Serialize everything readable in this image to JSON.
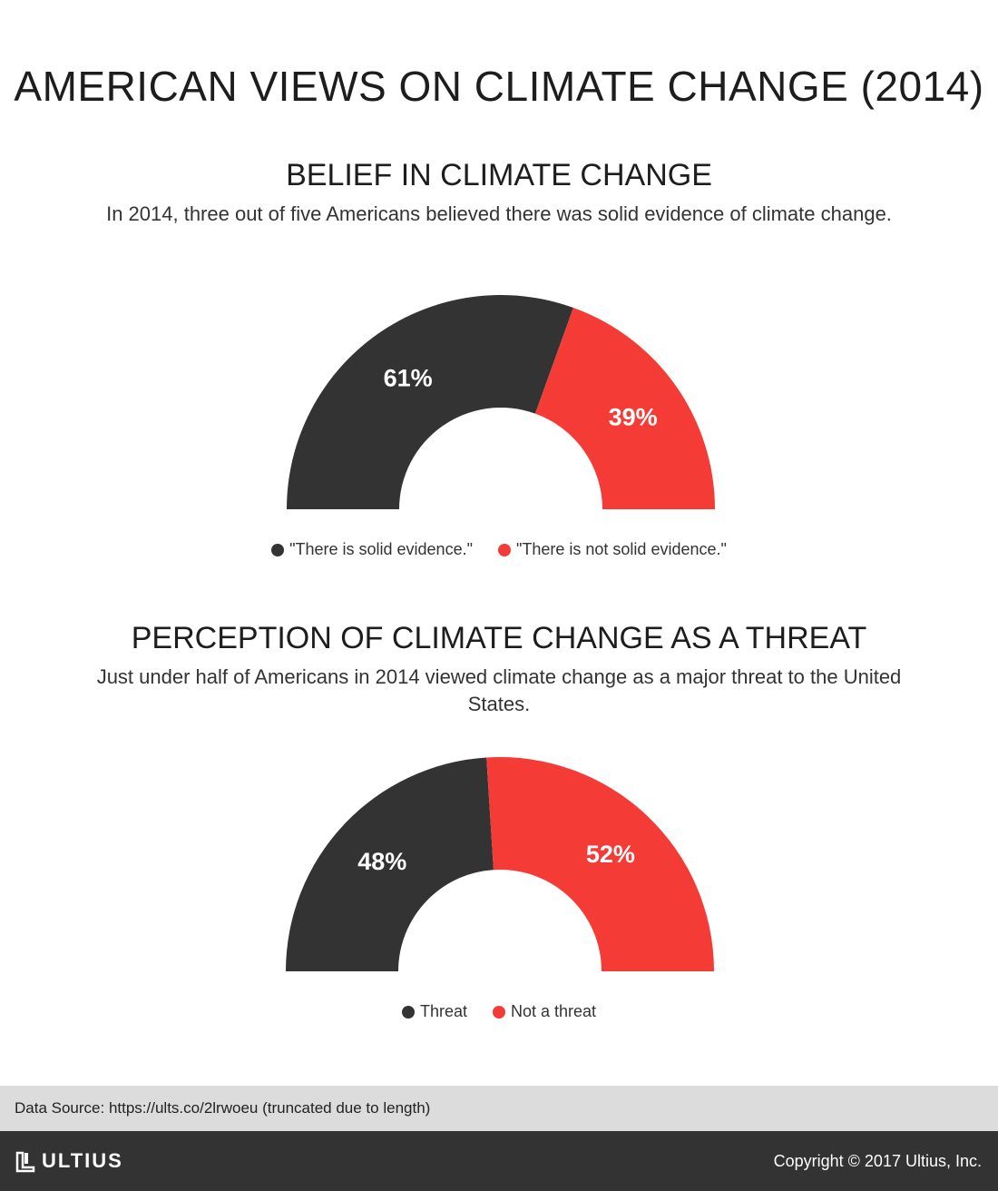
{
  "title": "AMERICAN VIEWS ON CLIMATE CHANGE (2014)",
  "colors": {
    "dark": "#333333",
    "red": "#f43b36"
  },
  "chart_data": [
    {
      "type": "pie",
      "title": "BELIEF IN CLIMATE CHANGE",
      "subtitle": "In 2014, three out of five Americans believed there was solid evidence of climate change.",
      "categories": [
        "\"There is solid evidence.\"",
        "\"There is not solid evidence.\""
      ],
      "values": [
        61,
        39
      ],
      "labels": [
        "61%",
        "39%"
      ],
      "legend_position": "bottom"
    },
    {
      "type": "pie",
      "title": "PERCEPTION OF CLIMATE CHANGE AS A THREAT",
      "subtitle": "Just under half of Americans in 2014 viewed climate change as a major threat to the United States.",
      "categories": [
        "Threat",
        "Not a threat"
      ],
      "values": [
        48,
        52
      ],
      "labels": [
        "48%",
        "52%"
      ],
      "legend_position": "bottom"
    }
  ],
  "footer": {
    "source": "Data Source: https://ults.co/2lrwoeu (truncated due to length)",
    "logo": "ULTIUS",
    "copyright": "Copyright © 2017 Ultius, Inc."
  }
}
